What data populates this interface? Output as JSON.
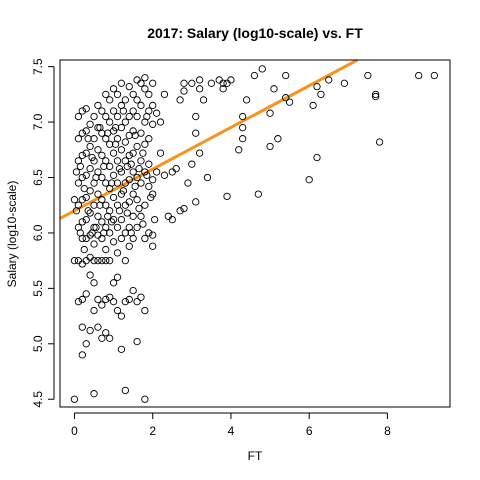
{
  "chart_data": {
    "type": "scatter",
    "title": "2017: Salary (log10-scale) vs. FT",
    "xlabel": "FT",
    "ylabel": "Salary (log10-scale)",
    "xlim": [
      -0.37,
      9.6
    ],
    "ylim": [
      4.43,
      7.56
    ],
    "xticks": [
      0,
      2,
      4,
      6,
      8
    ],
    "yticks": [
      4.5,
      5.0,
      5.5,
      6.0,
      6.5,
      7.0,
      7.5
    ],
    "xtick_labels": [
      "0",
      "2",
      "4",
      "6",
      "8"
    ],
    "ytick_labels": [
      "4.5",
      "5.0",
      "5.5",
      "6.0",
      "6.5",
      "7.0",
      "7.5"
    ],
    "fit_line": {
      "intercept": 6.2,
      "slope": 0.188,
      "color": "#f7941d"
    },
    "grid": false,
    "points": [
      [
        8.8,
        7.42
      ],
      [
        9.2,
        7.42
      ],
      [
        7.5,
        7.42
      ],
      [
        7.7,
        7.23
      ],
      [
        7.7,
        7.25
      ],
      [
        7.8,
        6.82
      ],
      [
        6.9,
        7.35
      ],
      [
        6.5,
        7.38
      ],
      [
        6.2,
        7.32
      ],
      [
        6.1,
        7.15
      ],
      [
        6.0,
        6.48
      ],
      [
        6.3,
        7.25
      ],
      [
        6.2,
        6.68
      ],
      [
        5.4,
        7.42
      ],
      [
        5.4,
        7.22
      ],
      [
        5.5,
        7.18
      ],
      [
        5.1,
        7.3
      ],
      [
        5.2,
        6.85
      ],
      [
        5.0,
        6.78
      ],
      [
        5.0,
        7.08
      ],
      [
        4.8,
        7.48
      ],
      [
        4.6,
        7.42
      ],
      [
        4.7,
        6.35
      ],
      [
        4.4,
        7.2
      ],
      [
        4.3,
        7.05
      ],
      [
        4.3,
        6.95
      ],
      [
        4.3,
        6.85
      ],
      [
        4.2,
        6.75
      ],
      [
        4.0,
        7.38
      ],
      [
        3.9,
        7.35
      ],
      [
        3.7,
        7.38
      ],
      [
        3.8,
        7.3
      ],
      [
        3.8,
        7.35
      ],
      [
        3.9,
        6.33
      ],
      [
        3.5,
        7.35
      ],
      [
        3.4,
        6.5
      ],
      [
        3.3,
        7.2
      ],
      [
        3.2,
        7.38
      ],
      [
        3.2,
        7.3
      ],
      [
        3.1,
        7.05
      ],
      [
        3.1,
        6.9
      ],
      [
        3.2,
        6.72
      ],
      [
        3.1,
        6.28
      ],
      [
        3.0,
        6.62
      ],
      [
        3.0,
        7.35
      ],
      [
        2.8,
        7.35
      ],
      [
        2.8,
        7.28
      ],
      [
        2.7,
        7.2
      ],
      [
        2.9,
        6.45
      ],
      [
        2.8,
        6.22
      ],
      [
        2.6,
        6.58
      ],
      [
        2.7,
        6.2
      ],
      [
        2.5,
        6.55
      ],
      [
        2.5,
        6.12
      ],
      [
        2.4,
        6.15
      ],
      [
        2.3,
        6.52
      ],
      [
        2.3,
        7.25
      ],
      [
        2.2,
        7.0
      ],
      [
        2.2,
        6.72
      ],
      [
        2.1,
        7.08
      ],
      [
        2.1,
        6.55
      ],
      [
        2.0,
        7.35
      ],
      [
        2.0,
        7.15
      ],
      [
        2.0,
        6.98
      ],
      [
        2.0,
        6.48
      ],
      [
        2.0,
        6.35
      ],
      [
        2.0,
        5.98
      ],
      [
        2.0,
        5.88
      ],
      [
        1.9,
        7.25
      ],
      [
        1.9,
        7.1
      ],
      [
        1.9,
        6.85
      ],
      [
        1.9,
        6.62
      ],
      [
        1.9,
        6.42
      ],
      [
        1.9,
        6.0
      ],
      [
        1.8,
        7.4
      ],
      [
        1.8,
        7.3
      ],
      [
        1.8,
        7.0
      ],
      [
        1.8,
        6.8
      ],
      [
        1.8,
        6.55
      ],
      [
        1.8,
        6.25
      ],
      [
        1.8,
        5.95
      ],
      [
        1.8,
        5.3
      ],
      [
        1.8,
        4.5
      ],
      [
        1.7,
        7.35
      ],
      [
        1.7,
        7.15
      ],
      [
        1.7,
        6.9
      ],
      [
        1.7,
        6.65
      ],
      [
        1.7,
        6.45
      ],
      [
        1.7,
        6.15
      ],
      [
        1.7,
        5.42
      ],
      [
        1.6,
        7.38
      ],
      [
        1.6,
        7.2
      ],
      [
        1.6,
        7.05
      ],
      [
        1.6,
        6.78
      ],
      [
        1.6,
        6.5
      ],
      [
        1.6,
        6.3
      ],
      [
        1.6,
        6.05
      ],
      [
        1.6,
        5.38
      ],
      [
        1.6,
        5.02
      ],
      [
        1.5,
        7.25
      ],
      [
        1.5,
        7.1
      ],
      [
        1.5,
        6.92
      ],
      [
        1.5,
        6.72
      ],
      [
        1.5,
        6.55
      ],
      [
        1.5,
        6.35
      ],
      [
        1.5,
        6.15
      ],
      [
        1.5,
        5.95
      ],
      [
        1.5,
        5.48
      ],
      [
        1.4,
        7.32
      ],
      [
        1.4,
        7.05
      ],
      [
        1.4,
        6.88
      ],
      [
        1.4,
        6.7
      ],
      [
        1.4,
        6.48
      ],
      [
        1.4,
        6.28
      ],
      [
        1.4,
        6.05
      ],
      [
        1.4,
        5.88
      ],
      [
        1.4,
        5.4
      ],
      [
        1.3,
        7.2
      ],
      [
        1.3,
        7.0
      ],
      [
        1.3,
        6.82
      ],
      [
        1.3,
        6.65
      ],
      [
        1.3,
        6.45
      ],
      [
        1.3,
        6.25
      ],
      [
        1.3,
        6.0
      ],
      [
        1.3,
        5.75
      ],
      [
        1.3,
        5.38
      ],
      [
        1.3,
        4.58
      ],
      [
        1.2,
        7.35
      ],
      [
        1.2,
        7.15
      ],
      [
        1.2,
        6.95
      ],
      [
        1.2,
        6.75
      ],
      [
        1.2,
        6.55
      ],
      [
        1.2,
        6.35
      ],
      [
        1.2,
        6.12
      ],
      [
        1.2,
        5.95
      ],
      [
        1.2,
        5.25
      ],
      [
        1.2,
        4.95
      ],
      [
        1.1,
        7.25
      ],
      [
        1.1,
        7.05
      ],
      [
        1.1,
        6.85
      ],
      [
        1.1,
        6.65
      ],
      [
        1.1,
        6.45
      ],
      [
        1.1,
        6.25
      ],
      [
        1.1,
        6.05
      ],
      [
        1.1,
        5.82
      ],
      [
        1.1,
        5.6
      ],
      [
        1.1,
        5.3
      ],
      [
        1.0,
        7.3
      ],
      [
        1.0,
        7.1
      ],
      [
        1.0,
        6.92
      ],
      [
        1.0,
        6.72
      ],
      [
        1.0,
        6.52
      ],
      [
        1.0,
        6.32
      ],
      [
        1.0,
        6.12
      ],
      [
        1.0,
        5.92
      ],
      [
        1.0,
        5.55
      ],
      [
        1.0,
        5.38
      ],
      [
        0.9,
        7.2
      ],
      [
        0.9,
        7.0
      ],
      [
        0.9,
        6.8
      ],
      [
        0.9,
        6.6
      ],
      [
        0.9,
        6.4
      ],
      [
        0.9,
        6.2
      ],
      [
        0.9,
        6.0
      ],
      [
        0.9,
        5.75
      ],
      [
        0.9,
        5.42
      ],
      [
        0.9,
        5.05
      ],
      [
        0.8,
        7.25
      ],
      [
        0.8,
        7.05
      ],
      [
        0.8,
        6.85
      ],
      [
        0.8,
        6.65
      ],
      [
        0.8,
        6.45
      ],
      [
        0.8,
        6.25
      ],
      [
        0.8,
        6.05
      ],
      [
        0.8,
        5.85
      ],
      [
        0.8,
        5.75
      ],
      [
        0.8,
        5.4
      ],
      [
        0.8,
        5.1
      ],
      [
        0.7,
        7.1
      ],
      [
        0.7,
        6.9
      ],
      [
        0.7,
        6.7
      ],
      [
        0.7,
        6.5
      ],
      [
        0.7,
        6.3
      ],
      [
        0.7,
        6.1
      ],
      [
        0.7,
        5.95
      ],
      [
        0.7,
        5.75
      ],
      [
        0.7,
        5.35
      ],
      [
        0.7,
        5.05
      ],
      [
        0.6,
        7.15
      ],
      [
        0.6,
        6.95
      ],
      [
        0.6,
        6.75
      ],
      [
        0.6,
        6.55
      ],
      [
        0.6,
        6.35
      ],
      [
        0.6,
        6.15
      ],
      [
        0.6,
        5.98
      ],
      [
        0.6,
        5.75
      ],
      [
        0.6,
        5.4
      ],
      [
        0.6,
        5.15
      ],
      [
        0.5,
        7.05
      ],
      [
        0.5,
        6.85
      ],
      [
        0.5,
        6.65
      ],
      [
        0.5,
        6.45
      ],
      [
        0.5,
        6.25
      ],
      [
        0.5,
        6.05
      ],
      [
        0.5,
        5.9
      ],
      [
        0.5,
        5.75
      ],
      [
        0.5,
        5.55
      ],
      [
        0.5,
        5.3
      ],
      [
        0.5,
        4.55
      ],
      [
        0.4,
        6.98
      ],
      [
        0.4,
        6.78
      ],
      [
        0.4,
        6.58
      ],
      [
        0.4,
        6.38
      ],
      [
        0.4,
        6.18
      ],
      [
        0.4,
        5.98
      ],
      [
        0.4,
        5.78
      ],
      [
        0.4,
        5.62
      ],
      [
        0.4,
        5.12
      ],
      [
        0.3,
        7.12
      ],
      [
        0.3,
        6.92
      ],
      [
        0.3,
        6.72
      ],
      [
        0.3,
        6.52
      ],
      [
        0.3,
        6.32
      ],
      [
        0.3,
        6.12
      ],
      [
        0.3,
        5.95
      ],
      [
        0.3,
        5.75
      ],
      [
        0.3,
        5.45
      ],
      [
        0.3,
        5.0
      ],
      [
        0.2,
        7.1
      ],
      [
        0.2,
        6.9
      ],
      [
        0.2,
        6.7
      ],
      [
        0.2,
        6.5
      ],
      [
        0.2,
        6.3
      ],
      [
        0.2,
        6.1
      ],
      [
        0.2,
        5.95
      ],
      [
        0.2,
        5.72
      ],
      [
        0.2,
        5.4
      ],
      [
        0.2,
        5.15
      ],
      [
        0.2,
        4.9
      ],
      [
        0.1,
        7.05
      ],
      [
        0.1,
        6.85
      ],
      [
        0.1,
        6.65
      ],
      [
        0.1,
        6.45
      ],
      [
        0.1,
        6.25
      ],
      [
        0.1,
        6.05
      ],
      [
        0.1,
        5.75
      ],
      [
        0.1,
        5.38
      ],
      [
        0.0,
        6.3
      ],
      [
        0.0,
        5.75
      ],
      [
        0.0,
        4.5
      ],
      [
        0.15,
        6.6
      ],
      [
        0.25,
        6.4
      ],
      [
        0.35,
        6.2
      ],
      [
        0.45,
        6.0
      ],
      [
        0.55,
        6.5
      ],
      [
        0.65,
        6.25
      ],
      [
        0.75,
        6.6
      ],
      [
        0.85,
        6.15
      ],
      [
        0.95,
        6.45
      ],
      [
        1.05,
        6.8
      ],
      [
        1.15,
        6.58
      ],
      [
        1.25,
        6.38
      ],
      [
        1.35,
        6.18
      ],
      [
        1.45,
        6.62
      ],
      [
        1.55,
        6.42
      ],
      [
        1.65,
        6.22
      ],
      [
        1.75,
        6.72
      ],
      [
        1.85,
        6.52
      ],
      [
        1.95,
        6.32
      ],
      [
        2.05,
        6.12
      ],
      [
        0.15,
        6.0
      ],
      [
        0.25,
        5.85
      ],
      [
        0.35,
        6.85
      ],
      [
        0.45,
        6.68
      ],
      [
        0.55,
        6.05
      ],
      [
        0.65,
        6.95
      ],
      [
        0.75,
        6.0
      ],
      [
        0.85,
        6.9
      ],
      [
        0.95,
        6.1
      ],
      [
        1.05,
        6.95
      ],
      [
        1.15,
        6.2
      ],
      [
        1.25,
        7.1
      ],
      [
        1.35,
        6.6
      ],
      [
        1.45,
        6.0
      ],
      [
        1.55,
        6.88
      ],
      [
        1.65,
        6.58
      ],
      [
        1.75,
        6.08
      ],
      [
        1.85,
        7.05
      ],
      [
        0.05,
        6.55
      ],
      [
        0.05,
        6.2
      ]
    ]
  }
}
